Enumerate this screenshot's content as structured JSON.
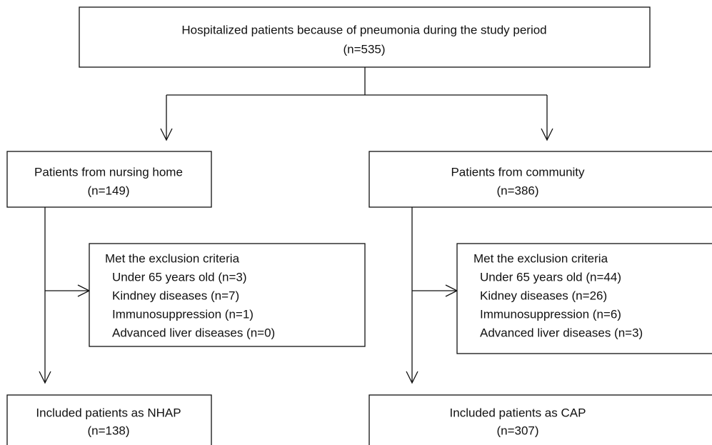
{
  "top": {
    "label": "Hospitalized patients because of pneumonia during the study period",
    "n": "(n=535)"
  },
  "branches": [
    {
      "label": "Patients from nursing home",
      "n": "(n=149)",
      "exclusion": {
        "title": "Met the exclusion criteria",
        "items": [
          "Under 65 years old (n=3)",
          "Kindney diseases (n=7)",
          "Immunosuppression (n=1)",
          "Advanced liver diseases (n=0)"
        ]
      },
      "included": {
        "label": "Included patients as NHAP",
        "n": "(n=138)"
      }
    },
    {
      "label": "Patients from community",
      "n": "(n=386)",
      "exclusion": {
        "title": "Met the exclusion criteria",
        "items": [
          "Under 65 years old (n=44)",
          "Kidney diseases (n=26)",
          "Immunosuppression (n=6)",
          "Advanced liver diseases (n=3)"
        ]
      },
      "included": {
        "label": "Included patients as CAP",
        "n": "(n=307)"
      }
    }
  ]
}
